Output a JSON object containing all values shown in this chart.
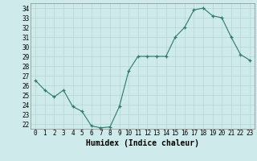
{
  "x": [
    0,
    1,
    2,
    3,
    4,
    5,
    6,
    7,
    8,
    9,
    10,
    11,
    12,
    13,
    14,
    15,
    16,
    17,
    18,
    19,
    20,
    21,
    22,
    23
  ],
  "y": [
    26.5,
    25.5,
    24.8,
    25.5,
    23.8,
    23.3,
    21.8,
    21.6,
    21.7,
    23.8,
    27.5,
    29.0,
    29.0,
    29.0,
    29.0,
    31.0,
    32.0,
    33.8,
    34.0,
    33.2,
    33.0,
    31.0,
    29.2,
    28.6
  ],
  "xlabel": "Humidex (Indice chaleur)",
  "ylim_min": 21.5,
  "ylim_max": 34.5,
  "xlim_min": -0.5,
  "xlim_max": 23.5,
  "yticks": [
    22,
    23,
    24,
    25,
    26,
    27,
    28,
    29,
    30,
    31,
    32,
    33,
    34
  ],
  "xticks": [
    0,
    1,
    2,
    3,
    4,
    5,
    6,
    7,
    8,
    9,
    10,
    11,
    12,
    13,
    14,
    15,
    16,
    17,
    18,
    19,
    20,
    21,
    22,
    23
  ],
  "line_color": "#2d7a6a",
  "bg_color": "#ceeaea",
  "grid_color": "#b5d5d5",
  "label_fontsize": 7,
  "tick_fontsize": 5.5
}
